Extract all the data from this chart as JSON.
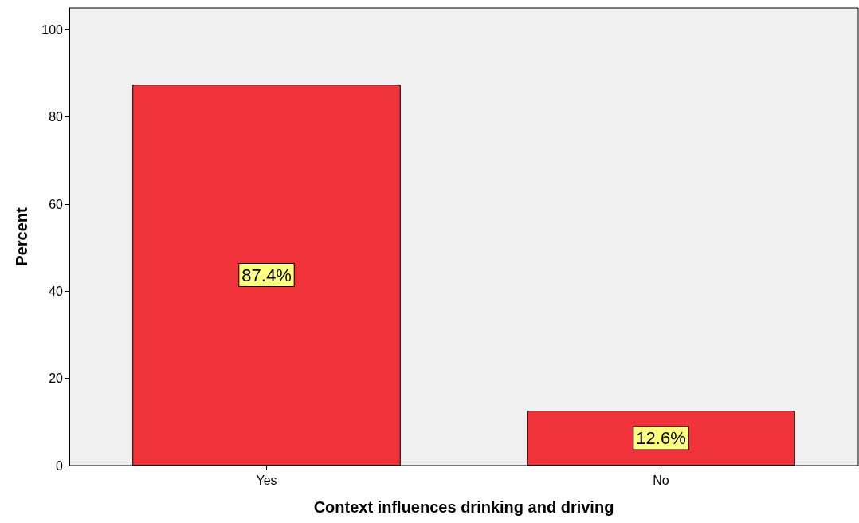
{
  "chart_data": {
    "type": "bar",
    "xlabel": "Context influences drinking and driving",
    "ylabel": "Percent",
    "categories": [
      "Yes",
      "No"
    ],
    "values": [
      87.4,
      12.6
    ],
    "value_labels": [
      "87.4%",
      "12.6%"
    ],
    "color": "#f0333a",
    "ylim": [
      0,
      105
    ],
    "yticks": [
      0,
      20,
      40,
      60,
      80,
      100
    ],
    "grid": false
  }
}
